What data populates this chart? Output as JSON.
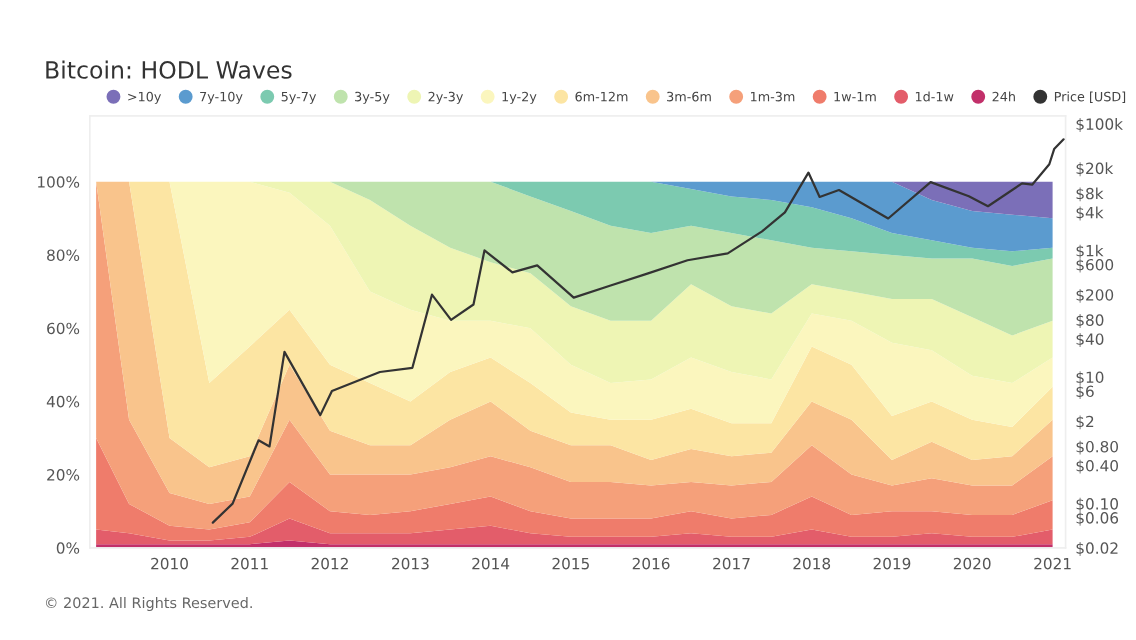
{
  "chart_data": {
    "type": "area",
    "title": "Bitcoin: HODL Waves",
    "stacked": true,
    "legend": "top",
    "grid": false,
    "log": "y2",
    "x": [
      "2009-02-01",
      "2009-07-01",
      "2010-01-01",
      "2010-07-01",
      "2011-01-01",
      "2011-07-01",
      "2012-01-01",
      "2012-07-01",
      "2013-01-01",
      "2013-07-01",
      "2014-01-01",
      "2014-07-01",
      "2015-01-01",
      "2015-07-01",
      "2016-01-01",
      "2016-07-01",
      "2017-01-01",
      "2017-07-01",
      "2018-01-01",
      "2018-07-01",
      "2019-01-01",
      "2019-07-01",
      "2020-01-01",
      "2020-07-01",
      "2021-01-01"
    ],
    "xlim": [
      "2009-01-03",
      "2021-03-01"
    ],
    "xticks": [
      "2010",
      "2011",
      "2012",
      "2013",
      "2014",
      "2015",
      "2016",
      "2017",
      "2018",
      "2019",
      "2020",
      "2021"
    ],
    "ylim": [
      0,
      118
    ],
    "yticks": [
      {
        "value": 0,
        "label": "0%"
      },
      {
        "value": 20,
        "label": "20%"
      },
      {
        "value": 40,
        "label": "40%"
      },
      {
        "value": 60,
        "label": "60%"
      },
      {
        "value": 80,
        "label": "80%"
      },
      {
        "value": 100,
        "label": "100%"
      }
    ],
    "y2lim": [
      0.02,
      134000
    ],
    "y2ticks": [
      {
        "value": 0.02,
        "label": "$0.02"
      },
      {
        "value": 0.06,
        "label": "$0.06"
      },
      {
        "value": 0.1,
        "label": "$0.10"
      },
      {
        "value": 0.4,
        "label": "$0.40"
      },
      {
        "value": 0.8,
        "label": "$0.80"
      },
      {
        "value": 2,
        "label": "$2"
      },
      {
        "value": 6,
        "label": "$6"
      },
      {
        "value": 10,
        "label": "$10"
      },
      {
        "value": 40,
        "label": "$40"
      },
      {
        "value": 80,
        "label": "$80"
      },
      {
        "value": 200,
        "label": "$200"
      },
      {
        "value": 600,
        "label": "$600"
      },
      {
        "value": 1000,
        "label": "$1k"
      },
      {
        "value": 4000,
        "label": "$4k"
      },
      {
        "value": 8000,
        "label": "$8k"
      },
      {
        "value": 20000,
        "label": "$20k"
      },
      {
        "value": 100000,
        "label": "$100k"
      }
    ],
    "series": [
      {
        "name": "24h",
        "color": "#c2306a",
        "values": [
          1,
          1,
          1,
          1,
          1,
          2,
          1,
          1,
          1,
          1,
          1,
          1,
          1,
          1,
          1,
          1,
          1,
          1,
          1,
          1,
          1,
          1,
          1,
          1,
          1
        ]
      },
      {
        "name": "1d-1w",
        "color": "#e35d6a",
        "values": [
          4,
          3,
          1,
          1,
          2,
          6,
          3,
          3,
          3,
          4,
          5,
          3,
          2,
          2,
          2,
          3,
          2,
          2,
          4,
          2,
          2,
          3,
          2,
          2,
          4
        ]
      },
      {
        "name": "1w-1m",
        "color": "#ef7c6b",
        "values": [
          25,
          8,
          4,
          3,
          4,
          10,
          6,
          5,
          6,
          7,
          8,
          6,
          5,
          5,
          5,
          6,
          5,
          6,
          9,
          6,
          7,
          6,
          6,
          6,
          8
        ]
      },
      {
        "name": "1m-3m",
        "color": "#f5a07a",
        "values": [
          70,
          23,
          9,
          7,
          7,
          17,
          10,
          11,
          10,
          10,
          11,
          12,
          10,
          10,
          9,
          8,
          9,
          9,
          14,
          11,
          7,
          9,
          8,
          8,
          12
        ]
      },
      {
        "name": "3m-6m",
        "color": "#f9c48c",
        "values": [
          0,
          65,
          15,
          10,
          11,
          15,
          12,
          8,
          8,
          13,
          15,
          10,
          10,
          10,
          7,
          9,
          8,
          8,
          12,
          15,
          7,
          10,
          7,
          8,
          10
        ]
      },
      {
        "name": "6m-12m",
        "color": "#fce5a3",
        "values": [
          0,
          0,
          70,
          23,
          30,
          15,
          18,
          17,
          12,
          13,
          12,
          13,
          9,
          7,
          11,
          11,
          9,
          8,
          15,
          15,
          12,
          11,
          11,
          8,
          9
        ]
      },
      {
        "name": "1y-2y",
        "color": "#fbf6be",
        "values": [
          0,
          0,
          0,
          55,
          45,
          32,
          38,
          25,
          25,
          14,
          10,
          15,
          13,
          10,
          11,
          14,
          14,
          12,
          9,
          12,
          20,
          14,
          12,
          12,
          8
        ]
      },
      {
        "name": "2y-3y",
        "color": "#eef5b4",
        "values": [
          0,
          0,
          0,
          0,
          0,
          3,
          12,
          25,
          23,
          20,
          16,
          15,
          16,
          17,
          16,
          20,
          18,
          18,
          8,
          8,
          12,
          14,
          16,
          13,
          10
        ]
      },
      {
        "name": "3y-5y",
        "color": "#bfe3ad",
        "values": [
          0,
          0,
          0,
          0,
          0,
          0,
          0,
          5,
          12,
          18,
          22,
          21,
          26,
          26,
          24,
          16,
          20,
          20,
          10,
          11,
          12,
          11,
          16,
          19,
          17
        ]
      },
      {
        "name": "5y-7y",
        "color": "#7ccab0",
        "values": [
          0,
          0,
          0,
          0,
          0,
          0,
          0,
          0,
          0,
          0,
          0,
          4,
          8,
          12,
          14,
          10,
          10,
          11,
          11,
          9,
          6,
          5,
          3,
          4,
          3
        ]
      },
      {
        "name": "7y-10y",
        "color": "#5b9bcf",
        "values": [
          0,
          0,
          0,
          0,
          0,
          0,
          0,
          0,
          0,
          0,
          0,
          0,
          0,
          0,
          0,
          2,
          4,
          5,
          7,
          10,
          14,
          11,
          10,
          10,
          8
        ]
      },
      {
        "name": ">10y",
        "color": "#7b6fb8",
        "values": [
          0,
          0,
          0,
          0,
          0,
          0,
          0,
          0,
          0,
          0,
          0,
          0,
          0,
          0,
          0,
          0,
          0,
          0,
          0,
          0,
          0,
          5,
          8,
          9,
          10
        ]
      },
      {
        "name": "Price [USD]",
        "type": "line",
        "axis": "y2",
        "color": "#333333",
        "x": [
          "2010-07-17",
          "2010-10-15",
          "2011-02-10",
          "2011-04-01",
          "2011-06-08",
          "2011-11-18",
          "2012-01-10",
          "2012-08-15",
          "2013-01-10",
          "2013-04-09",
          "2013-07-05",
          "2013-10-15",
          "2013-12-04",
          "2014-04-10",
          "2014-08-01",
          "2015-01-14",
          "2015-07-01",
          "2015-12-15",
          "2016-06-15",
          "2016-12-15",
          "2017-05-20",
          "2017-09-01",
          "2017-12-17",
          "2018-02-06",
          "2018-05-05",
          "2018-12-15",
          "2019-06-26",
          "2019-12-17",
          "2020-03-13",
          "2020-08-15",
          "2020-10-01",
          "2020-12-17",
          "2021-01-08",
          "2021-02-20"
        ],
        "values": [
          0.05,
          0.1,
          1,
          0.8,
          25,
          2.5,
          6,
          12,
          14,
          200,
          80,
          140,
          1000,
          450,
          580,
          180,
          280,
          430,
          700,
          900,
          2000,
          4000,
          17000,
          7000,
          9000,
          3200,
          12000,
          7200,
          5000,
          11500,
          11000,
          23000,
          40000,
          57000
        ]
      }
    ],
    "annotations": [
      "© 2021. All Rights Reserved."
    ]
  }
}
